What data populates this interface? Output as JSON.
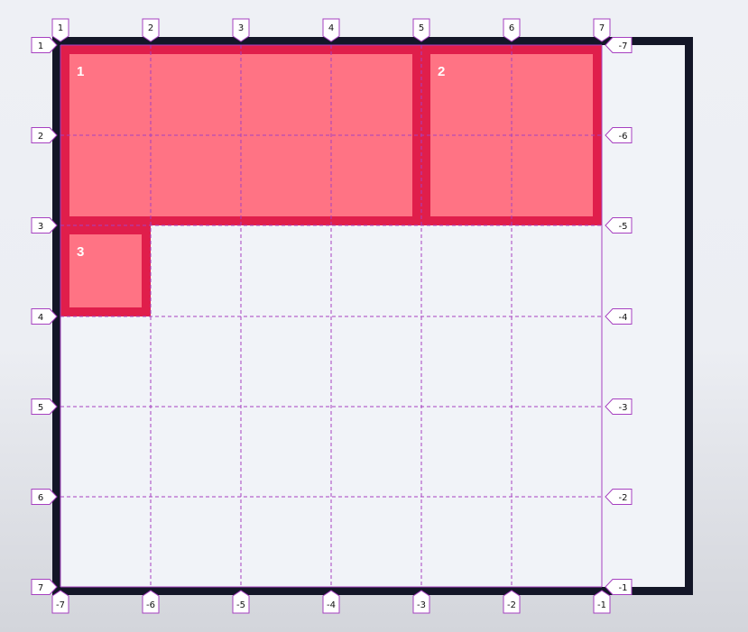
{
  "grid": {
    "line_color": "#a640c0",
    "container_border_color": "#131627",
    "item_border_color": "#e01e4b",
    "item_fill_color": "#ff7384",
    "columns": {
      "top_labels": [
        "1",
        "2",
        "3",
        "4",
        "5",
        "6",
        "7"
      ],
      "bottom_labels": [
        "-7",
        "-6",
        "-5",
        "-4",
        "-3",
        "-2",
        "-1"
      ]
    },
    "rows": {
      "left_labels": [
        "1",
        "2",
        "3",
        "4",
        "5",
        "6",
        "7"
      ],
      "right_labels": [
        "-7",
        "-6",
        "-5",
        "-4",
        "-3",
        "-2",
        "-1"
      ]
    }
  },
  "items": [
    {
      "label": "1",
      "col_start": 1,
      "col_end": 5,
      "row_start": 1,
      "row_end": 3
    },
    {
      "label": "2",
      "col_start": 5,
      "col_end": 7,
      "row_start": 1,
      "row_end": 3
    },
    {
      "label": "3",
      "col_start": 1,
      "col_end": 2,
      "row_start": 3,
      "row_end": 4
    }
  ]
}
